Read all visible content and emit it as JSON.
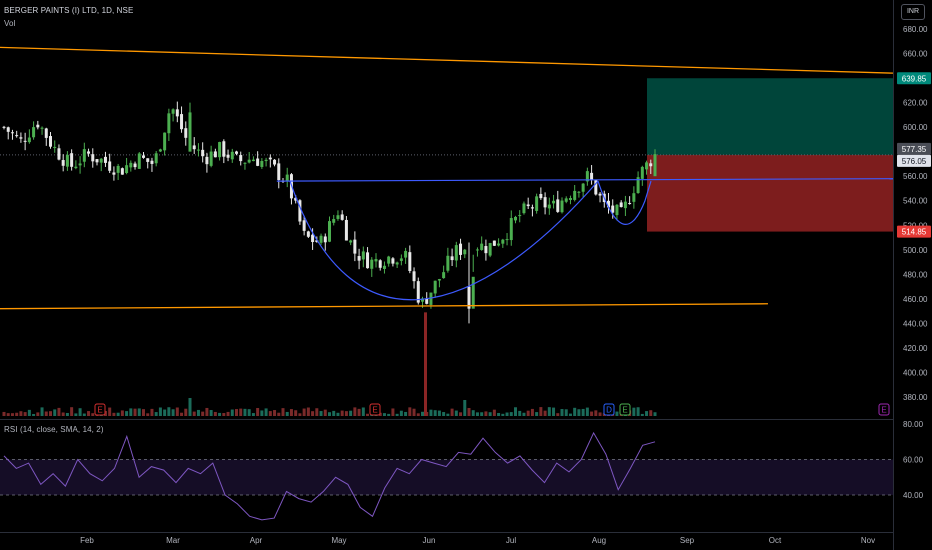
{
  "header": {
    "symbol": "BERGER PAINTS (I) LTD, 1D, NSE",
    "vol_label": "Vol",
    "rsi_label": "RSI (14, close, SMA, 14, 2)",
    "currency_button": "INR"
  },
  "colors": {
    "up": "#4caf50",
    "down": "#e8e8e8",
    "resistance_line": "#ff9800",
    "pattern_line": "#3d5afe",
    "target_zone": "#004d40",
    "stop_zone": "#8b2020",
    "rsi_line": "#7e57c2"
  },
  "price_axis": {
    "ticks": [
      "680.00",
      "660.00",
      "640.00",
      "620.00",
      "600.00",
      "580.00",
      "560.00",
      "540.00",
      "520.00",
      "500.00",
      "480.00",
      "460.00",
      "440.00",
      "420.00",
      "400.00",
      "380.00"
    ],
    "badges": {
      "target": "639.85",
      "current": "577.35",
      "close": "576.05",
      "stop": "514.85"
    }
  },
  "rsi_axis": {
    "ticks": [
      "80.00",
      "60.00",
      "40.00"
    ]
  },
  "time_axis": {
    "labels": [
      "Feb",
      "Mar",
      "Apr",
      "May",
      "Jun",
      "Jul",
      "Aug",
      "Sep",
      "Oct",
      "Nov"
    ]
  },
  "event_markers": [
    "E",
    "E",
    "D",
    "E",
    "E"
  ],
  "chart_data": {
    "type": "candlestick",
    "title": "BERGER PAINTS (I) LTD, 1D, NSE",
    "ylim": [
      370,
      690
    ],
    "rsi_ylim": [
      20,
      82
    ],
    "price_path": [
      [
        "Jan",
        600
      ],
      [
        "Jan",
        588
      ],
      [
        "Jan",
        605
      ],
      [
        "Jan",
        583
      ],
      [
        "Jan",
        568
      ],
      [
        "Feb",
        578
      ],
      [
        "Feb",
        572
      ],
      [
        "Feb",
        565
      ],
      [
        "Feb",
        575
      ],
      [
        "Feb",
        570
      ],
      [
        "Mar",
        618
      ],
      [
        "Mar",
        588
      ],
      [
        "Mar",
        575
      ],
      [
        "Mar",
        582
      ],
      [
        "Mar",
        572
      ],
      [
        "Apr",
        575
      ],
      [
        "Apr",
        568
      ],
      [
        "Apr",
        555
      ],
      [
        "Apr",
        510
      ],
      [
        "Apr",
        506
      ],
      [
        "May",
        532
      ],
      [
        "May",
        498
      ],
      [
        "May",
        490
      ],
      [
        "May",
        494
      ],
      [
        "May",
        496
      ],
      [
        "Jun",
        455
      ],
      [
        "Jun",
        475
      ],
      [
        "Jun",
        498
      ],
      [
        "Jun",
        505
      ],
      [
        "Jun",
        502
      ],
      [
        "Jul",
        513
      ],
      [
        "Jul",
        530
      ],
      [
        "Jul",
        538
      ],
      [
        "Jul",
        535
      ],
      [
        "Jul",
        548
      ],
      [
        "Aug",
        560
      ],
      [
        "Aug",
        535
      ],
      [
        "Aug",
        528
      ],
      [
        "Aug",
        560
      ],
      [
        "Aug",
        578
      ]
    ],
    "resistance_line": {
      "from": [
        0,
        665
      ],
      "to": [
        1,
        644
      ]
    },
    "support_line": {
      "from": [
        0,
        452
      ],
      "to": [
        0.86,
        456
      ]
    },
    "neckline": {
      "from": [
        0.31,
        556
      ],
      "to": [
        1,
        558
      ]
    },
    "cup_bottom": 452,
    "target": 639.85,
    "entry": 577.35,
    "stop": 514.85,
    "rsi_levels": [
      60,
      40
    ],
    "rsi_values": [
      62,
      55,
      58,
      46,
      52,
      45,
      60,
      52,
      48,
      55,
      73,
      50,
      56,
      54,
      47,
      55,
      52,
      58,
      40,
      35,
      28,
      26,
      27,
      42,
      38,
      36,
      42,
      50,
      46,
      33,
      28,
      44,
      55,
      52,
      60,
      58,
      56,
      64,
      63,
      72,
      64,
      58,
      62,
      54,
      47,
      58,
      53,
      60,
      75,
      63,
      43,
      55,
      68,
      70
    ]
  }
}
